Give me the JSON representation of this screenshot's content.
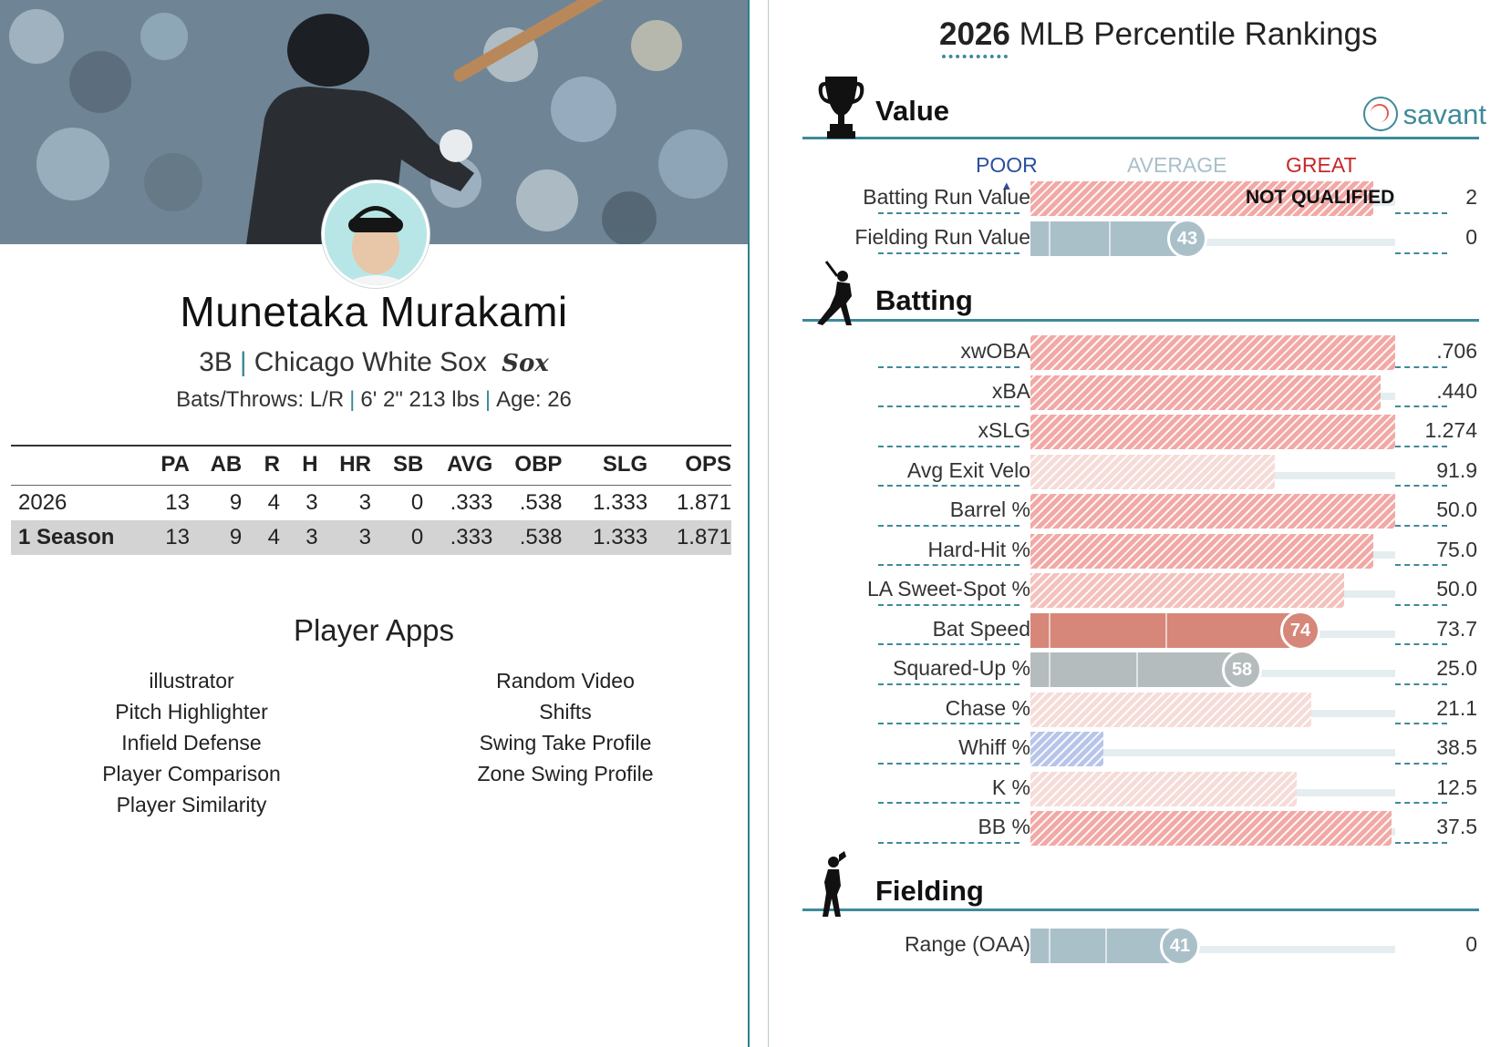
{
  "player": {
    "name": "Munetaka Murakami",
    "position": "3B",
    "team": "Chicago White Sox",
    "team_logo": "Sox",
    "bats_throws": "Bats/Throws: L/R",
    "height_weight": "6' 2\" 213 lbs",
    "age": "Age: 26"
  },
  "stats_table": {
    "headers": [
      "",
      "PA",
      "AB",
      "R",
      "H",
      "HR",
      "SB",
      "AVG",
      "OBP",
      "SLG",
      "OPS"
    ],
    "rows": [
      [
        "2026",
        "13",
        "9",
        "4",
        "3",
        "3",
        "0",
        ".333",
        ".538",
        "1.333",
        "1.871"
      ],
      [
        "1 Season",
        "13",
        "9",
        "4",
        "3",
        "3",
        "0",
        ".333",
        ".538",
        "1.333",
        "1.871"
      ]
    ]
  },
  "apps": {
    "title": "Player Apps",
    "left": [
      "illustrator",
      "Pitch Highlighter",
      "Infield Defense",
      "Player Comparison",
      "Player Similarity"
    ],
    "right": [
      "Random Video",
      "Shifts",
      "Swing Take Profile",
      "Zone Swing Profile"
    ]
  },
  "rankings": {
    "year": "2026",
    "title_rest": "MLB Percentile Rankings",
    "brand": "savant",
    "scale": {
      "poor": "POOR",
      "average": "AVERAGE",
      "great": "GREAT"
    },
    "colors": {
      "great": "#d6877a",
      "great_hatch": "#f2a9a6",
      "poor_hatch": "#b8c5ea",
      "neutral": "#aac0c9",
      "gray": "#b5bcbd",
      "teal": "#3e8a9a"
    },
    "sections": {
      "value": {
        "title": "Value",
        "rows": [
          {
            "label": "Batting Run Value",
            "value": "2",
            "percentile": 94,
            "style": "hatch-red",
            "note": "NOT QUALIFIED"
          },
          {
            "label": "Fielding Run Value",
            "value": "0",
            "percentile": 43,
            "style": "solid-blue",
            "badge": "43"
          }
        ]
      },
      "batting": {
        "title": "Batting",
        "rows": [
          {
            "label": "xwOBA",
            "value": ".706",
            "percentile": 100,
            "style": "hatch-red"
          },
          {
            "label": "xBA",
            "value": ".440",
            "percentile": 96,
            "style": "hatch-red"
          },
          {
            "label": "xSLG",
            "value": "1.274",
            "percentile": 100,
            "style": "hatch-red"
          },
          {
            "label": "Avg Exit Velo",
            "value": "91.9",
            "percentile": 67,
            "style": "hatch-faint"
          },
          {
            "label": "Barrel %",
            "value": "50.0",
            "percentile": 100,
            "style": "hatch-red"
          },
          {
            "label": "Hard-Hit %",
            "value": "75.0",
            "percentile": 94,
            "style": "hatch-red"
          },
          {
            "label": "LA Sweet-Spot %",
            "value": "50.0",
            "percentile": 86,
            "style": "hatch-mid"
          },
          {
            "label": "Bat Speed",
            "value": "73.7",
            "percentile": 74,
            "style": "solid-red",
            "badge": "74"
          },
          {
            "label": "Squared-Up %",
            "value": "25.0",
            "percentile": 58,
            "style": "solid-gray",
            "badge": "58"
          },
          {
            "label": "Chase %",
            "value": "21.1",
            "percentile": 77,
            "style": "hatch-faint"
          },
          {
            "label": "Whiff %",
            "value": "38.5",
            "percentile": 20,
            "style": "hatch-blue"
          },
          {
            "label": "K %",
            "value": "12.5",
            "percentile": 73,
            "style": "hatch-faint"
          },
          {
            "label": "BB %",
            "value": "37.5",
            "percentile": 99,
            "style": "hatch-red"
          }
        ]
      },
      "fielding": {
        "title": "Fielding",
        "rows": [
          {
            "label": "Range (OAA)",
            "value": "0",
            "percentile": 41,
            "style": "solid-blue",
            "badge": "41"
          }
        ]
      }
    }
  }
}
